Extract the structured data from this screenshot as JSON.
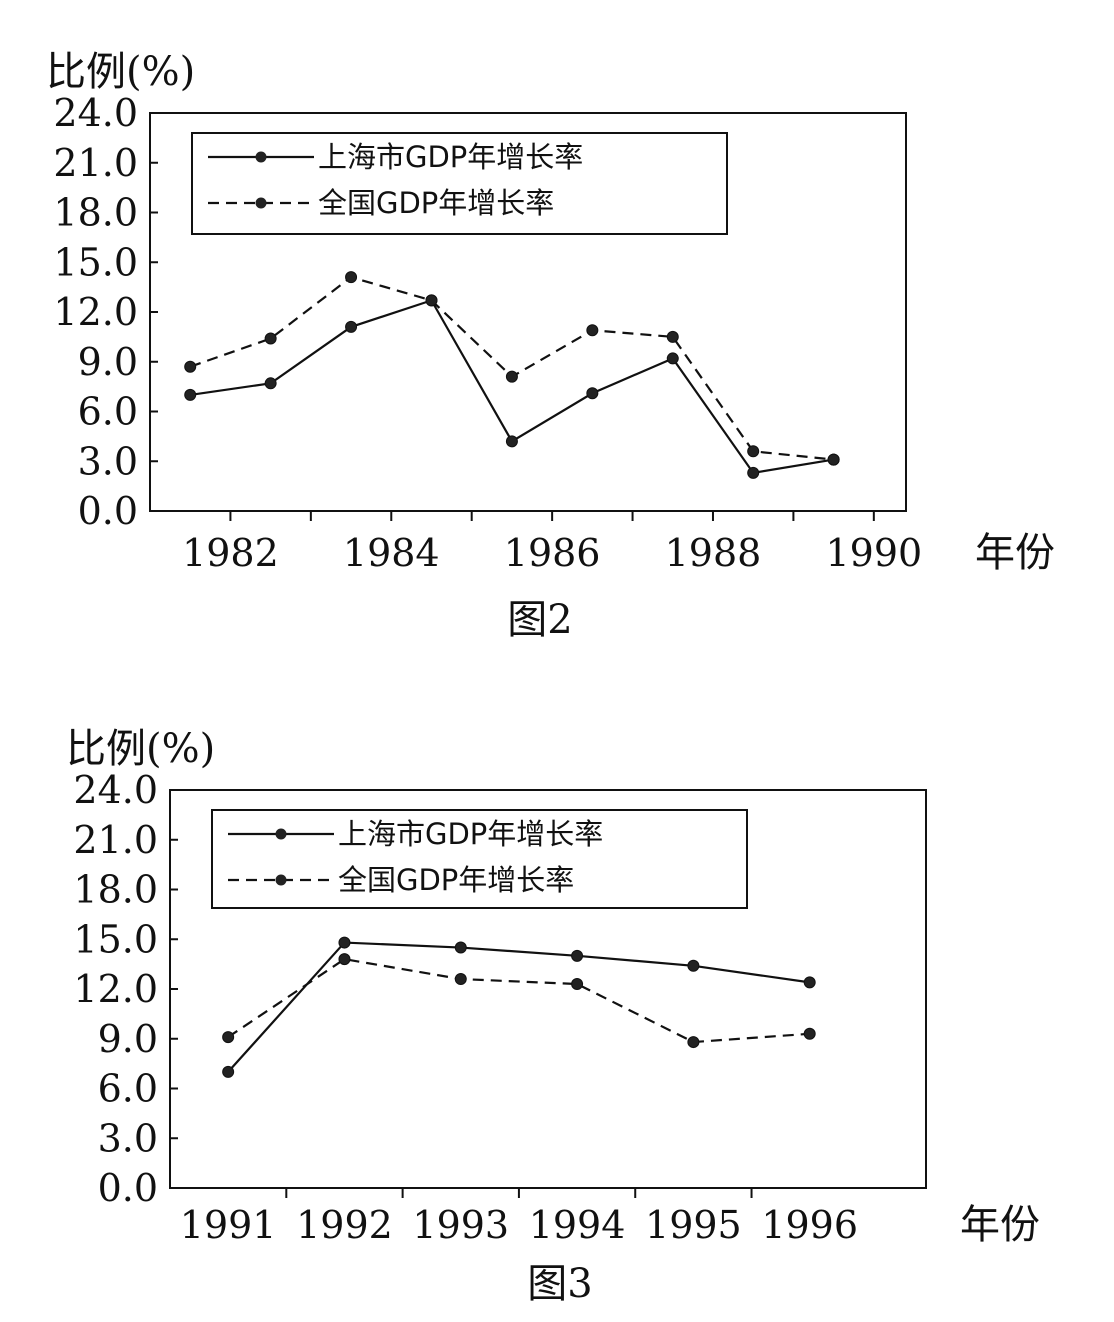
{
  "chart_data": [
    {
      "type": "line",
      "title": "",
      "caption": "图2",
      "ylabel": "比例(%)",
      "xlabel": "年份",
      "ylim": [
        0,
        24
      ],
      "xlim": [
        1981.0,
        1990.4
      ],
      "yticks": [
        "0.0",
        "3.0",
        "6.0",
        "9.0",
        "12.0",
        "15.0",
        "18.0",
        "21.0",
        "24.0"
      ],
      "xtick_labels": [
        "1982",
        "1984",
        "1986",
        "1988",
        "1990"
      ],
      "grid": false,
      "legend": "top-left",
      "series": [
        {
          "name": "上海市GDP年增长率",
          "style": "solid",
          "x": [
            1981.5,
            1982.5,
            1983.5,
            1984.5,
            1985.5,
            1986.5,
            1987.5,
            1988.5,
            1989.5
          ],
          "values": [
            7.0,
            7.7,
            11.1,
            12.7,
            4.2,
            7.1,
            9.2,
            2.3,
            3.1
          ]
        },
        {
          "name": "全国GDP年增长率",
          "style": "dashed",
          "x": [
            1981.5,
            1982.5,
            1983.5,
            1984.5,
            1985.5,
            1986.5,
            1987.5,
            1988.5,
            1989.5
          ],
          "values": [
            8.7,
            10.4,
            14.1,
            12.7,
            8.1,
            10.9,
            10.5,
            3.6,
            3.1
          ]
        }
      ]
    },
    {
      "type": "line",
      "title": "",
      "caption": "图3",
      "ylabel": "比例(%)",
      "xlabel": "年份",
      "ylim": [
        0,
        24
      ],
      "xlim": [
        1990.5,
        1997.0
      ],
      "yticks": [
        "0.0",
        "3.0",
        "6.0",
        "9.0",
        "12.0",
        "15.0",
        "18.0",
        "21.0",
        "24.0"
      ],
      "xtick_labels": [
        "1991",
        "1992",
        "1993",
        "1994",
        "1995",
        "1996"
      ],
      "grid": false,
      "legend": "top-left",
      "series": [
        {
          "name": "上海市GDP年增长率",
          "style": "solid",
          "x": [
            1991,
            1992,
            1993,
            1994,
            1995,
            1996
          ],
          "values": [
            7.0,
            14.8,
            14.5,
            14.0,
            13.4,
            12.4
          ]
        },
        {
          "name": "全国GDP年增长率",
          "style": "dashed",
          "x": [
            1991,
            1992,
            1993,
            1994,
            1995,
            1996
          ],
          "values": [
            9.1,
            13.8,
            12.6,
            12.3,
            8.8,
            9.3
          ]
        }
      ]
    }
  ]
}
